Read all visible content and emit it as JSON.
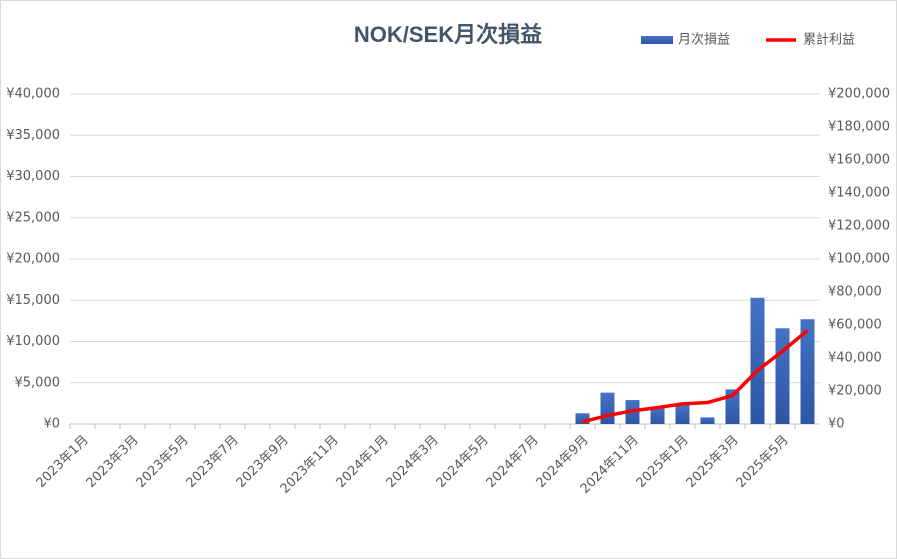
{
  "chart_data": {
    "type": "bar",
    "title": "NOK/SEK月次損益",
    "categories": [
      "2023年1月",
      null,
      "2023年3月",
      null,
      "2023年5月",
      null,
      "2023年7月",
      null,
      "2023年9月",
      null,
      "2023年11月",
      null,
      "2024年1月",
      null,
      "2024年3月",
      null,
      "2024年5月",
      null,
      "2024年7月",
      null,
      "2024年9月",
      null,
      "2024年11月",
      null,
      "2025年1月",
      null,
      "2025年3月",
      null,
      "2025年5月",
      null
    ],
    "series": [
      {
        "name": "月次損益",
        "color": "#4472c4",
        "values": [
          null,
          null,
          null,
          null,
          null,
          null,
          null,
          null,
          null,
          null,
          null,
          null,
          null,
          null,
          null,
          null,
          null,
          null,
          null,
          null,
          1300,
          3800,
          2900,
          1900,
          2300,
          800,
          4200,
          15300,
          11600,
          12700
        ]
      },
      {
        "name": "累計利益",
        "color": "#ff0000",
        "axis": "y2",
        "values": [
          null,
          null,
          null,
          null,
          null,
          null,
          null,
          null,
          null,
          null,
          null,
          null,
          null,
          null,
          null,
          null,
          null,
          null,
          null,
          null,
          1300,
          5100,
          8000,
          9900,
          12200,
          13000,
          17200,
          32500,
          44100,
          56800
        ]
      }
    ],
    "ylim": [
      0,
      40000
    ],
    "yticks": [
      {
        "value": 0,
        "label": "¥0"
      },
      {
        "value": 5000,
        "label": "¥5,000"
      },
      {
        "value": 10000,
        "label": "¥10,000"
      },
      {
        "value": 15000,
        "label": "¥15,000"
      },
      {
        "value": 20000,
        "label": "¥20,000"
      },
      {
        "value": 25000,
        "label": "¥25,000"
      },
      {
        "value": 30000,
        "label": "¥30,000"
      },
      {
        "value": 35000,
        "label": "¥35,000"
      },
      {
        "value": 40000,
        "label": "¥40,000"
      }
    ],
    "y2lim": [
      0,
      200000
    ],
    "y2ticks": [
      {
        "value": 0,
        "label": "¥0"
      },
      {
        "value": 20000,
        "label": "¥20,000"
      },
      {
        "value": 40000,
        "label": "¥40,000"
      },
      {
        "value": 60000,
        "label": "¥60,000"
      },
      {
        "value": 80000,
        "label": "¥80,000"
      },
      {
        "value": 100000,
        "label": "¥100,000"
      },
      {
        "value": 120000,
        "label": "¥120,000"
      },
      {
        "value": 140000,
        "label": "¥140,000"
      },
      {
        "value": 160000,
        "label": "¥160,000"
      },
      {
        "value": 180000,
        "label": "¥180,000"
      },
      {
        "value": 200000,
        "label": "¥200,000"
      }
    ],
    "grid": true,
    "legend": "top-right"
  }
}
